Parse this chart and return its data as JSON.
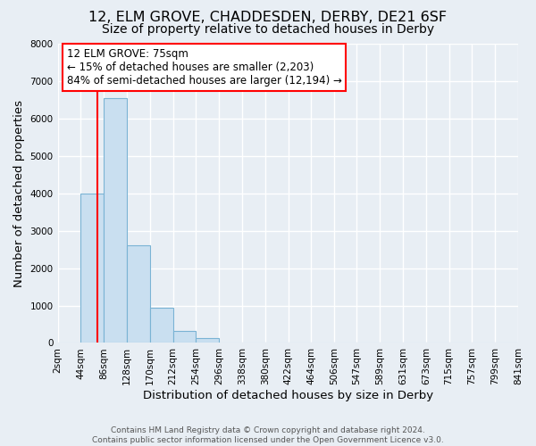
{
  "title": "12, ELM GROVE, CHADDESDEN, DERBY, DE21 6SF",
  "subtitle": "Size of property relative to detached houses in Derby",
  "xlabel": "Distribution of detached houses by size in Derby",
  "ylabel": "Number of detached properties",
  "footnote1": "Contains HM Land Registry data © Crown copyright and database right 2024.",
  "footnote2": "Contains public sector information licensed under the Open Government Licence v3.0.",
  "bar_edges": [
    2,
    44,
    86,
    128,
    170,
    212,
    254,
    296,
    338,
    380,
    422,
    464,
    506,
    547,
    589,
    631,
    673,
    715,
    757,
    799,
    841
  ],
  "bar_heights": [
    0,
    4000,
    6550,
    2600,
    950,
    320,
    130,
    0,
    0,
    0,
    0,
    0,
    0,
    0,
    0,
    0,
    0,
    0,
    0,
    0
  ],
  "bar_color": "#c9dff0",
  "bar_edgecolor": "#7ab3d4",
  "bar_linewidth": 0.8,
  "property_line_x": 75,
  "property_line_color": "red",
  "annotation_title": "12 ELM GROVE: 75sqm",
  "annotation_line1": "← 15% of detached houses are smaller (2,203)",
  "annotation_line2": "84% of semi-detached houses are larger (12,194) →",
  "annotation_box_color": "white",
  "annotation_box_edgecolor": "red",
  "ylim": [
    0,
    8000
  ],
  "yticks": [
    0,
    1000,
    2000,
    3000,
    4000,
    5000,
    6000,
    7000,
    8000
  ],
  "tick_labels": [
    "2sqm",
    "44sqm",
    "86sqm",
    "128sqm",
    "170sqm",
    "212sqm",
    "254sqm",
    "296sqm",
    "338sqm",
    "380sqm",
    "422sqm",
    "464sqm",
    "506sqm",
    "547sqm",
    "589sqm",
    "631sqm",
    "673sqm",
    "715sqm",
    "757sqm",
    "799sqm",
    "841sqm"
  ],
  "background_color": "#e8eef4",
  "grid_color": "white",
  "title_fontsize": 11.5,
  "subtitle_fontsize": 10,
  "axis_label_fontsize": 9.5,
  "tick_fontsize": 7.5,
  "annotation_fontsize": 8.5,
  "footnote_fontsize": 6.5
}
